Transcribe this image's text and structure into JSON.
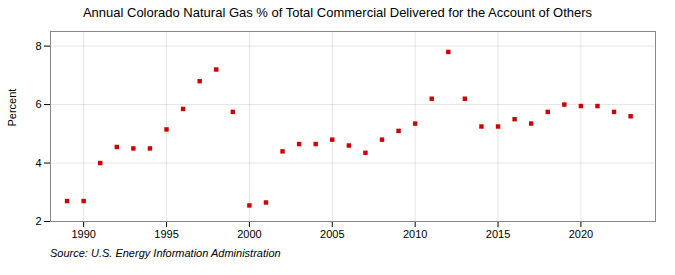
{
  "chart_data": {
    "type": "scatter",
    "title": "Annual Colorado Natural Gas % of Total Commercial Delivered for the Account of Others",
    "ylabel": "Percent",
    "source": "Source: U.S. Energy Information Administration",
    "color": "#cc0000",
    "marker": "square",
    "x": [
      1989,
      1990,
      1991,
      1992,
      1993,
      1994,
      1995,
      1996,
      1997,
      1998,
      1999,
      2000,
      2001,
      2002,
      2003,
      2004,
      2005,
      2006,
      2007,
      2008,
      2009,
      2010,
      2011,
      2012,
      2013,
      2014,
      2015,
      2016,
      2017,
      2018,
      2019,
      2020,
      2021,
      2022,
      2023
    ],
    "values": [
      2.7,
      2.7,
      4.0,
      4.55,
      4.5,
      4.5,
      5.15,
      5.85,
      6.8,
      7.2,
      5.75,
      2.55,
      2.65,
      4.4,
      4.65,
      4.65,
      4.8,
      4.6,
      4.35,
      4.8,
      5.1,
      5.35,
      6.2,
      7.8,
      6.2,
      5.25,
      5.25,
      5.5,
      5.35,
      5.75,
      6.0,
      5.95,
      5.95,
      5.75,
      5.6
    ],
    "xlim": [
      1988.0,
      2024.5
    ],
    "ylim": [
      2.0,
      8.5
    ],
    "xticks": [
      1990,
      1995,
      2000,
      2005,
      2010,
      2015,
      2020
    ],
    "yticks": [
      2,
      4,
      6,
      8
    ],
    "grid": true
  }
}
